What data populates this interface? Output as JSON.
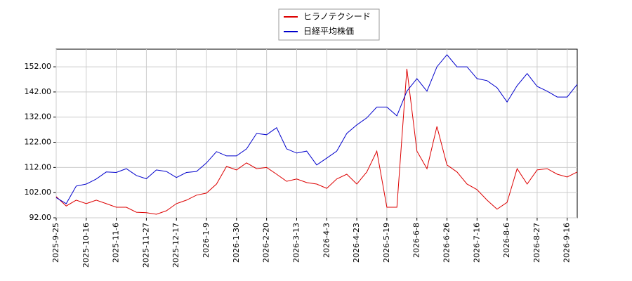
{
  "chart_data": {
    "type": "line",
    "categories": [
      "2025-9-25",
      null,
      null,
      "2025-10-16",
      null,
      null,
      "2025-11-6",
      null,
      null,
      "2025-11-27",
      null,
      null,
      "2025-12-17",
      null,
      null,
      "2026-1-9",
      null,
      null,
      "2026-1-30",
      null,
      null,
      "2026-2-20",
      null,
      null,
      "2026-3-13",
      null,
      null,
      "2026-4-3",
      null,
      null,
      "2026-4-23",
      null,
      null,
      "2026-5-19",
      null,
      null,
      "2026-6-8",
      null,
      null,
      "2026-6-26",
      null,
      null,
      "2026-7-16",
      null,
      null,
      "2026-8-6",
      null,
      null,
      "2026-8-27",
      null,
      null,
      "2026-9-16",
      null
    ],
    "series": [
      {
        "name": "ヒラノテクシード",
        "color": "#dd0000",
        "values": [
          100.4,
          96.7,
          99,
          97.6,
          99,
          97.6,
          96.2,
          96.2,
          94.2,
          94,
          93.4,
          94.8,
          97.6,
          99,
          101,
          101.8,
          105.4,
          112.4,
          111,
          113.8,
          111.5,
          112,
          109.3,
          106.5,
          107.4,
          106,
          105.4,
          103.7,
          107.4,
          109.3,
          105.4,
          110.2,
          118.5,
          96.2,
          96.2,
          151.2,
          118.5,
          111.5,
          128.3,
          113,
          110.2,
          105.4,
          103.2,
          99,
          95.4,
          98.1,
          111.5,
          105.4,
          111,
          111.5,
          109.3,
          108.2,
          110.2
        ]
      },
      {
        "name": "日経平均株価",
        "color": "#0000cc",
        "values": [
          100,
          97.6,
          104.6,
          105.4,
          107.4,
          110.2,
          110,
          111.5,
          108.8,
          107.5,
          111,
          110.4,
          108,
          110,
          110.4,
          113.8,
          118.3,
          116.6,
          116.6,
          119.4,
          125.5,
          125,
          127.8,
          119.4,
          117.7,
          118.5,
          113,
          115.7,
          118.5,
          125.5,
          128.9,
          131.7,
          136,
          136,
          132.5,
          142.3,
          147.3,
          142.3,
          152,
          156.8,
          152,
          152,
          147.3,
          146.5,
          143.7,
          138,
          144.5,
          149.3,
          144.2,
          142.3,
          140,
          140,
          145
        ]
      }
    ],
    "ylim": [
      92,
      159
    ],
    "yticks": [
      {
        "value": 92,
        "label": "92.00"
      },
      {
        "value": 102,
        "label": "102.00"
      },
      {
        "value": 112,
        "label": "112.00"
      },
      {
        "value": 122,
        "label": "122.00"
      },
      {
        "value": 132,
        "label": "132.00"
      },
      {
        "value": 142,
        "label": "142.00"
      },
      {
        "value": 152,
        "label": "152.00"
      }
    ],
    "grid": true
  }
}
